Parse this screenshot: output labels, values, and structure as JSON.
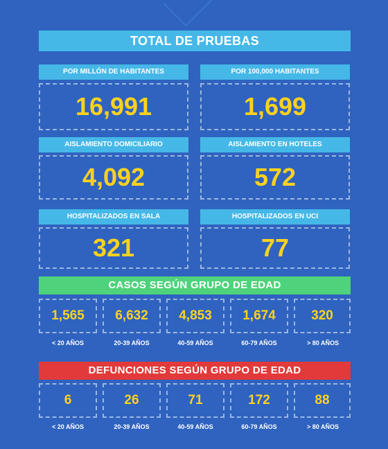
{
  "title": "TOTAL DE PRUEBAS",
  "metrics": [
    {
      "label": "POR MILLÓN DE HABITANTES",
      "value": "16,991"
    },
    {
      "label": "POR 100,000 HABITANTES",
      "value": "1,699"
    },
    {
      "label": "AISLAMIENTO DOMICILIARIO",
      "value": "4,092"
    },
    {
      "label": "AISLAMIENTO EN HOTELES",
      "value": "572"
    },
    {
      "label": "HOSPITALIZADOS EN SALA",
      "value": "321"
    },
    {
      "label": "HOSPITALIZADOS EN UCI",
      "value": "77"
    }
  ],
  "cases_section": {
    "title": "CASOS SEGÚN GRUPO DE EDAD",
    "values": [
      "1,565",
      "6,632",
      "4,853",
      "1,674",
      "320"
    ],
    "ages": [
      "< 20 AÑOS",
      "20-39 AÑOS",
      "40-59 AÑOS",
      "60-79 AÑOS",
      "> 80 AÑOS"
    ]
  },
  "deaths_section": {
    "title": "DEFUNCIONES SEGÚN GRUPO DE EDAD",
    "values": [
      "6",
      "26",
      "71",
      "172",
      "88"
    ],
    "ages": [
      "< 20 AÑOS",
      "20-39 AÑOS",
      "40-59 AÑOS",
      "60-79 AÑOS",
      "> 80 AÑOS"
    ]
  }
}
